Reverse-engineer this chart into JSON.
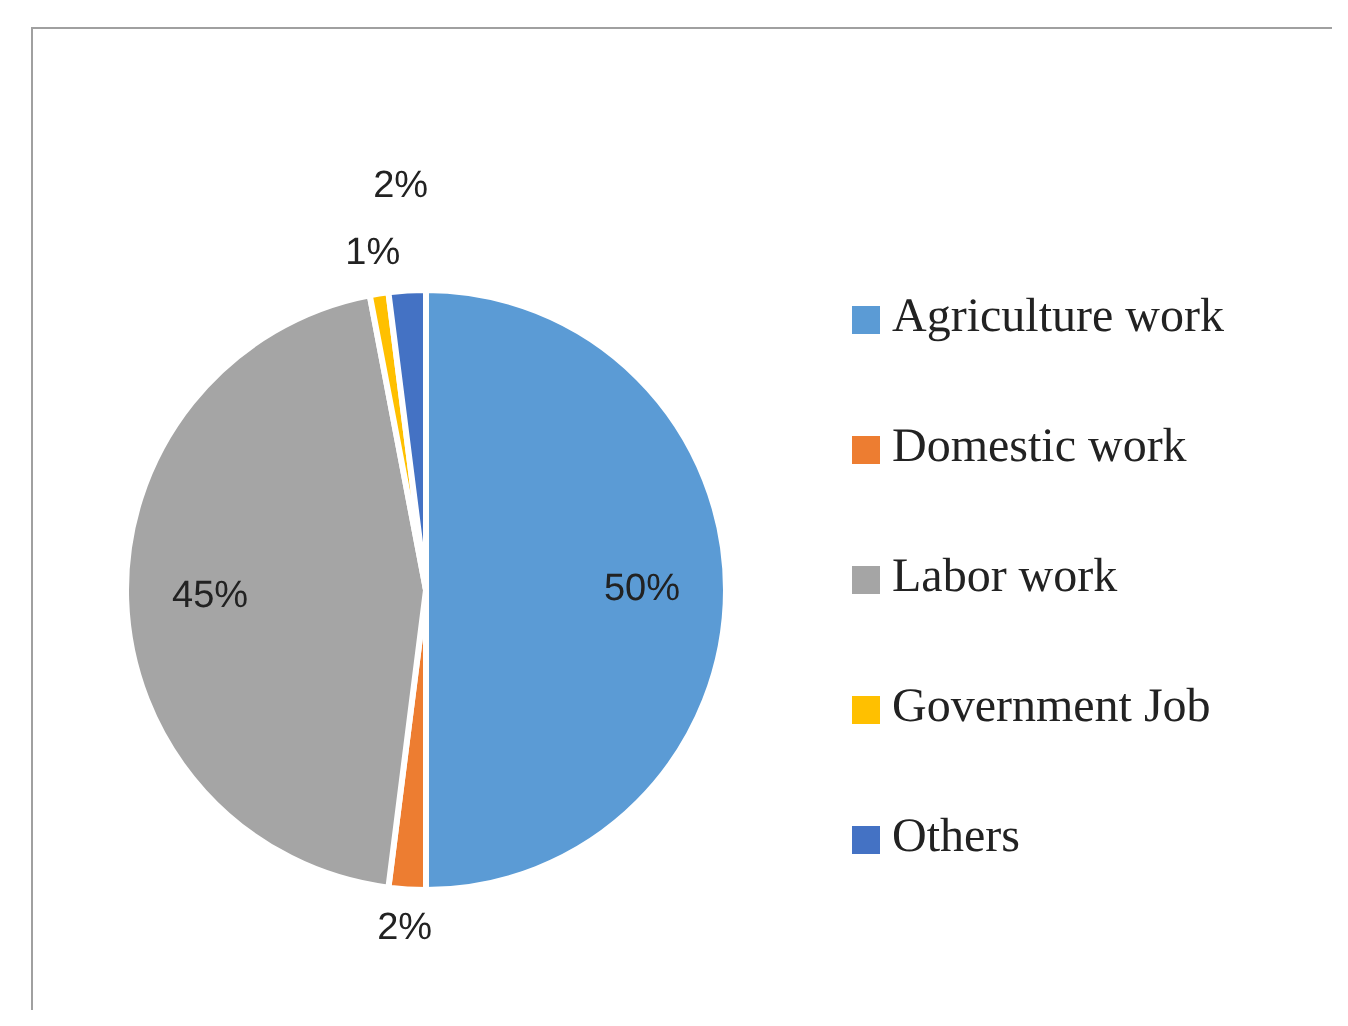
{
  "chart_data": {
    "type": "pie",
    "categories": [
      "Agriculture work",
      "Domestic work",
      "Labor work",
      "Government Job",
      "Others"
    ],
    "values": [
      50,
      2,
      45,
      1,
      2
    ],
    "value_labels": [
      "50%",
      "2%",
      "45%",
      "1%",
      "2%"
    ],
    "colors": [
      "#5b9bd5",
      "#ed7d31",
      "#a5a5a5",
      "#ffc000",
      "#4472c4"
    ],
    "legend": "right"
  }
}
